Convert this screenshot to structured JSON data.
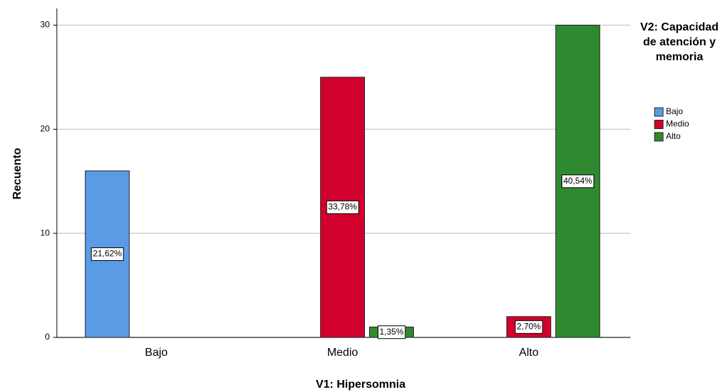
{
  "chart_data": {
    "type": "bar",
    "x_label": "V1: Hipersomnia",
    "y_label": "Recuento",
    "legend_title": "V2: Capacidad de atención y memoria",
    "legend_position": "right",
    "categories": [
      "Bajo",
      "Medio",
      "Alto"
    ],
    "series": [
      {
        "name": "Bajo",
        "color": "#5a9be6",
        "values": [
          16,
          0,
          0
        ],
        "value_labels": [
          "21,62%",
          null,
          null
        ]
      },
      {
        "name": "Medio",
        "color": "#d2002c",
        "values": [
          0,
          25,
          2
        ],
        "value_labels": [
          null,
          "33,78%",
          "2,70%"
        ]
      },
      {
        "name": "Alto",
        "color": "#2f8a2f",
        "values": [
          0,
          1,
          30
        ],
        "value_labels": [
          null,
          "1,35%",
          "40,54%"
        ]
      }
    ],
    "ylim": [
      0,
      31.6
    ],
    "yticks": [
      0,
      10,
      20,
      30
    ],
    "grid": true
  }
}
